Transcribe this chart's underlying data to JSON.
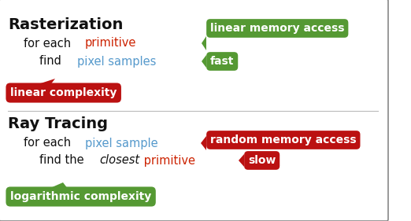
{
  "bg_color": "#ffffff",
  "border_color": "#888888",
  "title1": "Rasterization",
  "title2": "Ray Tracing",
  "raster_line1_pre": "for each ",
  "raster_line1_colored": "primitive",
  "raster_line1_color": "#cc2200",
  "raster_line2_pre": "find ",
  "raster_line2_colored": "pixel samples",
  "raster_line2_color": "#5599cc",
  "raster_badge1_text": "linear memory access",
  "raster_badge1_color": "#559933",
  "raster_badge2_text": "fast",
  "raster_badge2_color": "#559933",
  "raster_complexity_text": "linear complexity",
  "raster_complexity_color": "#bb1111",
  "rt_line1_pre": "for each ",
  "rt_line1_colored": "pixel sample",
  "rt_line1_color": "#5599cc",
  "rt_line2_pre": "find the ",
  "rt_line2_italic": "closest",
  "rt_line2_post": " primitive",
  "rt_line2_color": "#cc2200",
  "rt_badge1_text": "random memory access",
  "rt_badge1_color": "#bb1111",
  "rt_badge2_text": "slow",
  "rt_badge2_color": "#bb1111",
  "rt_complexity_text": "logarithmic complexity",
  "rt_complexity_color": "#559933",
  "text_color": "#111111",
  "white": "#ffffff"
}
